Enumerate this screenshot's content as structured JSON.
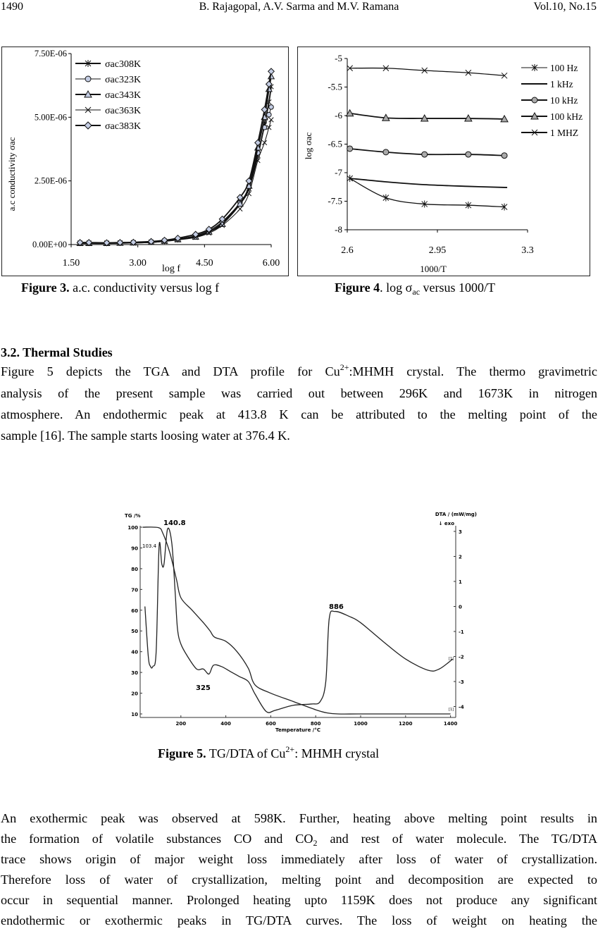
{
  "header": {
    "page_number": "1490",
    "authors": "B. Rajagopal, A.V. Sarma and M.V. Ramana",
    "volume": "Vol.10, No.15"
  },
  "figure3": {
    "caption_label": "Figure 3.",
    "caption_text": " a.c. conductivity versus log f"
  },
  "figure4": {
    "caption_label": "Figure 4",
    "caption_pre": ". log σ",
    "caption_sub": "ac",
    "caption_post": " versus 1000/T"
  },
  "section": {
    "heading": "3.2. Thermal Studies"
  },
  "para1": {
    "l1a": "Figure 5 depicts the TGA and DTA profile for Cu",
    "l1sup": "2+",
    "l1b": ":MHMH crystal. The thermo gravimetric",
    "l2": "analysis of the present sample was carried out between 296K and 1673K in nitrogen",
    "l3": "atmosphere. An endothermic peak at 413.8 K can be attributed to the melting point of the",
    "l4": "sample [16]. The sample starts loosing water at 376.4 K."
  },
  "figure5": {
    "caption_label": "Figure 5.",
    "caption_pre": " TG/DTA of  Cu",
    "caption_sup": "2+",
    "caption_post": ": MHMH crystal"
  },
  "para2": {
    "l1": "An exothermic peak was observed at 598K. Further, heating above melting point results in",
    "l2a": "the formation of volatile substances CO and CO",
    "l2sub": "2",
    "l2b": " and rest of water molecule. The TG/DTA",
    "l3": "trace shows origin of major weight loss immediately after loss of water of crystallization.",
    "l4": "Therefore loss of water of crystallization, melting point and decomposition are expected to",
    "l5": "occur in sequential manner. Prolonged heating upto 1159K does not produce any significant",
    "l6": "endothermic or exothermic peaks in TG/DTA curves. The loss of weight on heating the"
  },
  "chart_data": [
    {
      "type": "line",
      "title": "",
      "xlabel": "log f",
      "ylabel": "a.c conductivity σac",
      "xlim": [
        1.5,
        6.0
      ],
      "ylim": [
        0,
        7.5e-06
      ],
      "xticks": [
        "1.50",
        "3.00",
        "4.50",
        "6.00"
      ],
      "yticks": [
        "0.00E+00",
        "2.50E-06",
        "5.00E-06",
        "7.50E-06"
      ],
      "legend": "top-left",
      "grid": false,
      "x": [
        1.7,
        1.9,
        2.3,
        2.6,
        2.9,
        3.3,
        3.6,
        3.9,
        4.3,
        4.6,
        4.9,
        5.3,
        5.5,
        5.7,
        5.85,
        5.95,
        6.0
      ],
      "y_unit_scale": 1e-06,
      "series": [
        {
          "name": "σac308K",
          "marker": "asterisk",
          "values": [
            0.06,
            0.06,
            0.06,
            0.07,
            0.08,
            0.1,
            0.14,
            0.2,
            0.33,
            0.5,
            0.85,
            1.6,
            2.2,
            3.5,
            4.7,
            5.6,
            6.2
          ]
        },
        {
          "name": "σac323K",
          "marker": "circle",
          "values": [
            0.07,
            0.07,
            0.06,
            0.07,
            0.08,
            0.1,
            0.15,
            0.22,
            0.35,
            0.55,
            0.9,
            1.65,
            2.3,
            3.6,
            4.6,
            5.1,
            5.4
          ]
        },
        {
          "name": "σac343K",
          "marker": "triangle",
          "values": [
            0.05,
            0.05,
            0.05,
            0.06,
            0.07,
            0.09,
            0.14,
            0.2,
            0.3,
            0.5,
            0.8,
            1.6,
            2.3,
            3.8,
            5.0,
            6.1,
            6.6
          ]
        },
        {
          "name": "σac363K",
          "marker": "x",
          "values": [
            0.04,
            0.04,
            0.04,
            0.05,
            0.06,
            0.08,
            0.12,
            0.18,
            0.28,
            0.45,
            0.75,
            1.4,
            2.0,
            3.3,
            4.0,
            4.6,
            4.9
          ]
        },
        {
          "name": "σac383K",
          "marker": "diamond",
          "values": [
            0.08,
            0.08,
            0.07,
            0.08,
            0.09,
            0.12,
            0.17,
            0.25,
            0.4,
            0.6,
            1.0,
            1.85,
            2.5,
            4.0,
            5.3,
            6.3,
            6.8
          ]
        }
      ]
    },
    {
      "type": "line",
      "title": "",
      "xlabel": "1000/T",
      "ylabel": "log σac",
      "xlim": [
        2.6,
        3.3
      ],
      "ylim": [
        -8,
        -5
      ],
      "xticks": [
        "2.6",
        "2.95",
        "3.3"
      ],
      "yticks": [
        "-5",
        "-5.5",
        "-6",
        "-6.5",
        "-7",
        "-7.5",
        "-8"
      ],
      "legend": "top-right",
      "grid": false,
      "x": [
        2.61,
        2.75,
        2.9,
        3.07,
        3.21
      ],
      "series": [
        {
          "name": "100 Hz",
          "marker": "asterisk",
          "values": [
            -7.1,
            -7.44,
            -7.55,
            -7.57,
            -7.6
          ]
        },
        {
          "name": "1 kHz",
          "marker": "none",
          "values": [
            -7.1,
            -7.16,
            -7.21,
            -7.24,
            -7.26
          ]
        },
        {
          "name": "10 kHz",
          "marker": "circle",
          "values": [
            -6.58,
            -6.64,
            -6.68,
            -6.68,
            -6.7
          ]
        },
        {
          "name": "100 kHz",
          "marker": "triangle",
          "values": [
            -5.96,
            -6.04,
            -6.05,
            -6.05,
            -6.06
          ]
        },
        {
          "name": "1 MHZ",
          "marker": "x",
          "values": [
            -5.17,
            -5.17,
            -5.21,
            -5.25,
            -5.3
          ]
        }
      ]
    },
    {
      "type": "line",
      "title": "",
      "xlabel": "Temperature /°C",
      "ylabel": "TG /%",
      "y2label": "DTA / (mW/mg)",
      "y2note": "↓ exo",
      "xlim": [
        30,
        1410
      ],
      "ylim": [
        10,
        100
      ],
      "y2lim": [
        -4,
        3
      ],
      "xticks": [
        "200",
        "400",
        "600",
        "800",
        "1000",
        "1200",
        "1400"
      ],
      "yticks": [
        "10",
        "20",
        "30",
        "40",
        "50",
        "60",
        "70",
        "80",
        "90",
        "100"
      ],
      "y2ticks": [
        "-4",
        "-3",
        "-2",
        "-1",
        "0",
        "1",
        "2",
        "3"
      ],
      "annotations": [
        "140.8",
        "103.4",
        "886",
        "325",
        "[1]",
        "[1]"
      ],
      "series": [
        {
          "name": "TG",
          "axis": "left",
          "x": [
            30,
            100,
            120,
            150,
            180,
            200,
            250,
            300,
            330,
            350,
            400,
            450,
            500,
            530,
            600,
            700,
            800,
            850,
            900,
            1000,
            1200,
            1400
          ],
          "values": [
            100,
            99.8,
            97,
            88,
            75,
            66,
            60,
            54,
            50,
            47,
            45,
            40,
            32,
            24,
            20,
            16,
            12,
            10.5,
            10,
            10,
            10,
            10
          ]
        },
        {
          "name": "DTA",
          "axis": "right",
          "x": [
            40,
            55,
            65,
            75,
            90,
            103,
            115,
            125,
            140.8,
            160,
            175,
            185,
            200,
            230,
            270,
            300,
            325,
            345,
            380,
            420,
            460,
            500,
            530,
            580,
            620,
            700,
            780,
            820,
            845,
            860,
            886,
            950,
            1000,
            1100,
            1200,
            1300,
            1350,
            1410
          ],
          "values": [
            0.0,
            -2.0,
            -2.4,
            -2.4,
            -1.8,
            2.4,
            1.7,
            1.7,
            3.1,
            2.5,
            0.5,
            -0.9,
            -1.5,
            -2.0,
            -2.5,
            -2.5,
            -2.7,
            -2.35,
            -2.4,
            -2.6,
            -2.8,
            -3.0,
            -3.5,
            -4.2,
            -4.15,
            -3.95,
            -3.9,
            -3.8,
            -3.0,
            -0.5,
            -0.2,
            -0.4,
            -0.65,
            -1.4,
            -2.1,
            -2.55,
            -2.5,
            -2.1
          ]
        }
      ]
    }
  ]
}
